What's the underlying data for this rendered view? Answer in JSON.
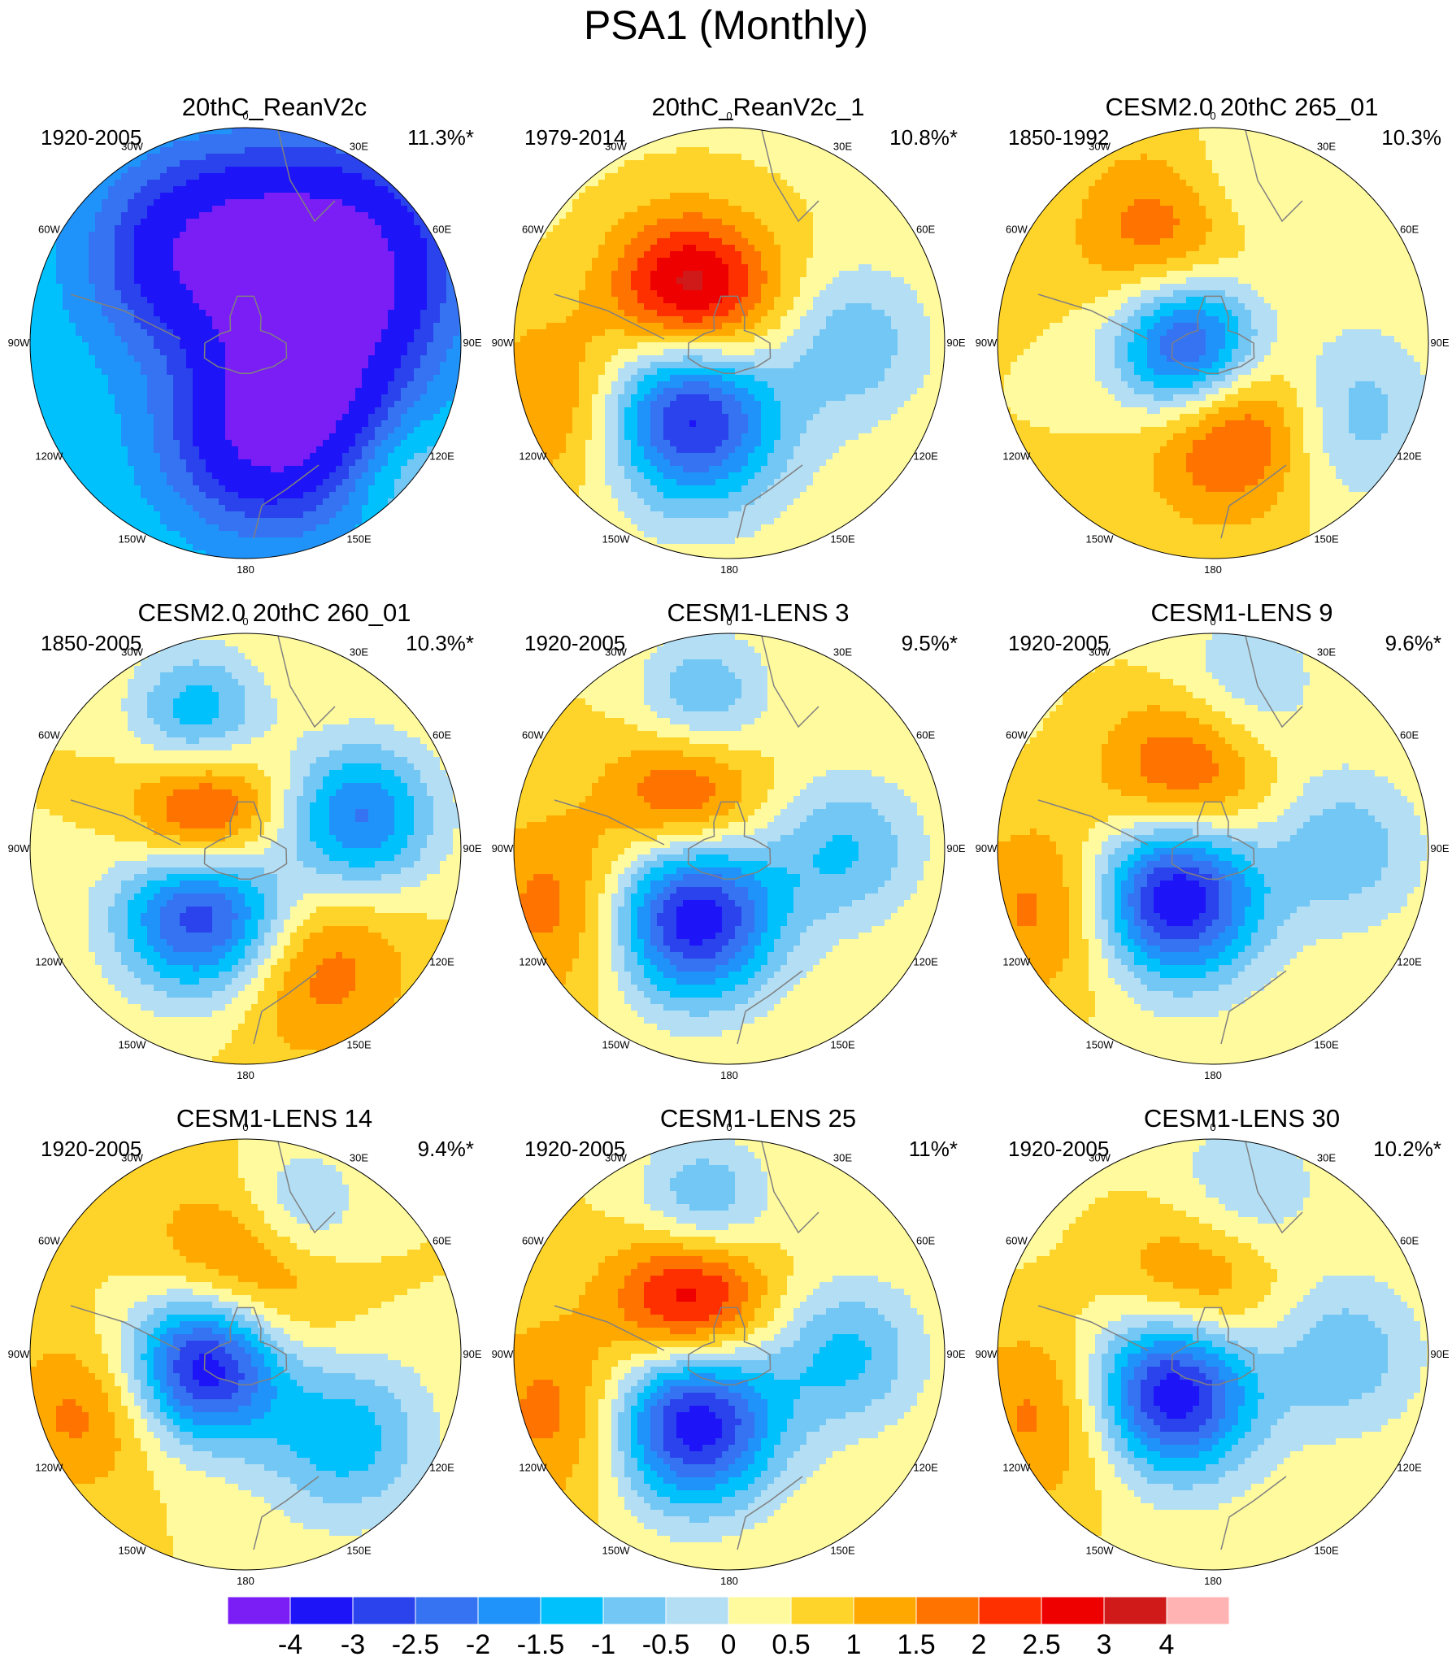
{
  "title": "PSA1 (Monthly)",
  "colors": {
    "levels": [
      "#7a1ef5",
      "#1d14f8",
      "#2a43ec",
      "#3573f2",
      "#1f93f9",
      "#00c1fc",
      "#73c7f5",
      "#b3def3",
      "#fffa9e",
      "#ffd42a",
      "#ffa800",
      "#ff7400",
      "#ff3000",
      "#ee0000",
      "#d01a1a",
      "#ffb3b3"
    ],
    "land_outline": "#808080",
    "frame": "#000000"
  },
  "lon_labels": [
    "0",
    "30E",
    "60E",
    "90E",
    "120E",
    "150E",
    "180",
    "150W",
    "120W",
    "90W",
    "60W",
    "30W"
  ],
  "panels": [
    {
      "title": "20thC_ReanV2c",
      "period": "1920-2005",
      "pct": "11.3%*",
      "pattern": {
        "base": -1,
        "centers": [
          {
            "lon": 50,
            "r": 0.55,
            "v": -3.6,
            "s": 0.38
          },
          {
            "lon": 160,
            "r": 0.35,
            "v": -4.0,
            "s": 0.35
          },
          {
            "lon": -30,
            "r": 0.45,
            "v": -2.8,
            "s": 0.35
          },
          {
            "lon": -110,
            "r": 0.1,
            "v": 1.4,
            "s": 0.3
          },
          {
            "lon": 130,
            "r": 0.95,
            "v": 0.8,
            "s": 0.2
          }
        ]
      }
    },
    {
      "title": "20thC_ReanV2c_1",
      "period": "1979-2014",
      "pct": "10.8%*",
      "pattern": {
        "base": 0.4,
        "centers": [
          {
            "lon": -150,
            "r": 0.35,
            "v": -4.2,
            "s": 0.3
          },
          {
            "lon": -40,
            "r": 0.32,
            "v": 2.6,
            "s": 0.25
          },
          {
            "lon": -110,
            "r": 0.8,
            "v": 1.4,
            "s": 0.3
          },
          {
            "lon": 90,
            "r": 0.55,
            "v": -1.4,
            "s": 0.25
          },
          {
            "lon": 30,
            "r": 0.05,
            "v": 1.2,
            "s": 0.3
          }
        ]
      }
    },
    {
      "title": "CESM2.0 20thC 265_01",
      "period": "1850-1992",
      "pct": "10.3%",
      "pattern": {
        "base": 0.5,
        "centers": [
          {
            "lon": -100,
            "r": 0.1,
            "v": -4.4,
            "s": 0.25
          },
          {
            "lon": 160,
            "r": 0.35,
            "v": 2.8,
            "s": 0.3
          },
          {
            "lon": -20,
            "r": 0.5,
            "v": 1.8,
            "s": 0.3
          },
          {
            "lon": 120,
            "r": 0.65,
            "v": -1.7,
            "s": 0.3
          },
          {
            "lon": 10,
            "r": 0.7,
            "v": -1.0,
            "s": 0.25
          }
        ]
      }
    },
    {
      "title": "CESM2.0 20thC 260_01",
      "period": "1850-2005",
      "pct": "10.3%*",
      "pattern": {
        "base": 0.5,
        "centers": [
          {
            "lon": -145,
            "r": 0.32,
            "v": -4.2,
            "s": 0.28
          },
          {
            "lon": -60,
            "r": 0.22,
            "v": 3.0,
            "s": 0.25
          },
          {
            "lon": 75,
            "r": 0.55,
            "v": -2.6,
            "s": 0.25
          },
          {
            "lon": -20,
            "r": 0.65,
            "v": -2.0,
            "s": 0.22
          },
          {
            "lon": 150,
            "r": 0.6,
            "v": 1.5,
            "s": 0.3
          }
        ]
      }
    },
    {
      "title": "CESM1-LENS 3",
      "period": "1920-2005",
      "pct": "9.5%*",
      "pattern": {
        "base": 0.5,
        "centers": [
          {
            "lon": -150,
            "r": 0.35,
            "v": -4.2,
            "s": 0.28
          },
          {
            "lon": -40,
            "r": 0.3,
            "v": 2.0,
            "s": 0.25
          },
          {
            "lon": -110,
            "r": 0.8,
            "v": 1.4,
            "s": 0.3
          },
          {
            "lon": 90,
            "r": 0.55,
            "v": -1.5,
            "s": 0.25
          },
          {
            "lon": -10,
            "r": 0.7,
            "v": -1.6,
            "s": 0.22
          }
        ]
      }
    },
    {
      "title": "CESM1-LENS 9",
      "period": "1920-2005",
      "pct": "9.6%*",
      "pattern": {
        "base": 0.4,
        "centers": [
          {
            "lon": -140,
            "r": 0.28,
            "v": -4.3,
            "s": 0.27
          },
          {
            "lon": -20,
            "r": 0.35,
            "v": 2.0,
            "s": 0.28
          },
          {
            "lon": -110,
            "r": 0.8,
            "v": 1.4,
            "s": 0.3
          },
          {
            "lon": 90,
            "r": 0.6,
            "v": -1.3,
            "s": 0.25
          },
          {
            "lon": 10,
            "r": 0.75,
            "v": -1.0,
            "s": 0.25
          }
        ]
      }
    },
    {
      "title": "CESM1-LENS 14",
      "period": "1920-2005",
      "pct": "9.4%*",
      "pattern": {
        "base": 0.5,
        "centers": [
          {
            "lon": -100,
            "r": 0.18,
            "v": -4.3,
            "s": 0.25
          },
          {
            "lon": 0,
            "r": 0.35,
            "v": 1.9,
            "s": 0.3
          },
          {
            "lon": 130,
            "r": 0.6,
            "v": -1.8,
            "s": 0.28
          },
          {
            "lon": 20,
            "r": 0.7,
            "v": -1.4,
            "s": 0.22
          },
          {
            "lon": -110,
            "r": 0.8,
            "v": 1.2,
            "s": 0.25
          }
        ]
      }
    },
    {
      "title": "CESM1-LENS 25",
      "period": "1920-2005",
      "pct": "11%*",
      "pattern": {
        "base": 0.5,
        "centers": [
          {
            "lon": -150,
            "r": 0.35,
            "v": -4.2,
            "s": 0.28
          },
          {
            "lon": -35,
            "r": 0.3,
            "v": 2.8,
            "s": 0.25
          },
          {
            "lon": -110,
            "r": 0.8,
            "v": 1.4,
            "s": 0.3
          },
          {
            "lon": 90,
            "r": 0.55,
            "v": -1.6,
            "s": 0.25
          },
          {
            "lon": -10,
            "r": 0.7,
            "v": -1.7,
            "s": 0.22
          }
        ]
      }
    },
    {
      "title": "CESM1-LENS 30",
      "period": "1920-2005",
      "pct": "10.2%*",
      "pattern": {
        "base": 0.4,
        "centers": [
          {
            "lon": -130,
            "r": 0.25,
            "v": -4.3,
            "s": 0.27
          },
          {
            "lon": -15,
            "r": 0.3,
            "v": 1.7,
            "s": 0.28
          },
          {
            "lon": -110,
            "r": 0.8,
            "v": 1.4,
            "s": 0.3
          },
          {
            "lon": 90,
            "r": 0.6,
            "v": -1.3,
            "s": 0.25
          },
          {
            "lon": 10,
            "r": 0.75,
            "v": -1.0,
            "s": 0.25
          }
        ]
      }
    }
  ],
  "colorbar": {
    "levels": [
      -5,
      -4,
      -3,
      -2.5,
      -2,
      -1.5,
      -1,
      -0.5,
      0,
      0.5,
      1,
      1.5,
      2,
      2.5,
      3,
      4,
      5
    ],
    "labels": [
      "-4",
      "-3",
      "-2.5",
      "-2",
      "-1.5",
      "-1",
      "-0.5",
      "0",
      "0.5",
      "1",
      "1.5",
      "2",
      "2.5",
      "3",
      "4"
    ]
  }
}
